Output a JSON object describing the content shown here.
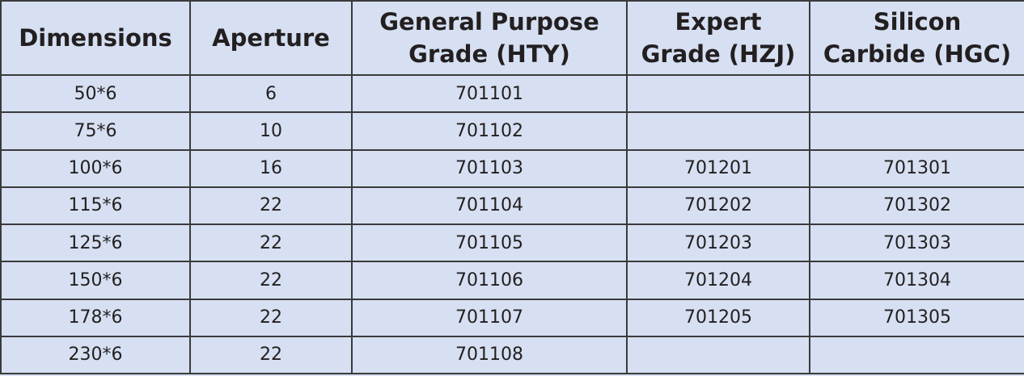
{
  "table": {
    "header": [
      [
        "Dimensions"
      ],
      [
        "Aperture"
      ],
      [
        "General Purpose",
        "Grade (HTY)"
      ],
      [
        "Expert",
        "Grade (HZJ)"
      ],
      [
        "Silicon",
        "Carbide (HGC)"
      ]
    ],
    "rows": [
      [
        "50*6",
        "6",
        "701101",
        null,
        null
      ],
      [
        "75*6",
        "10",
        "701102",
        null,
        null
      ],
      [
        "100*6",
        "16",
        "701103",
        "701201",
        "701301"
      ],
      [
        "115*6",
        "22",
        "701104",
        "701202",
        "701302"
      ],
      [
        "125*6",
        "22",
        "701105",
        "701203",
        "701303"
      ],
      [
        "150*6",
        "22",
        "701106",
        "701204",
        "701304"
      ],
      [
        "178*6",
        "22",
        "701107",
        "701205",
        "701305"
      ],
      [
        "230*6",
        "22",
        "701108",
        null,
        null
      ]
    ]
  }
}
